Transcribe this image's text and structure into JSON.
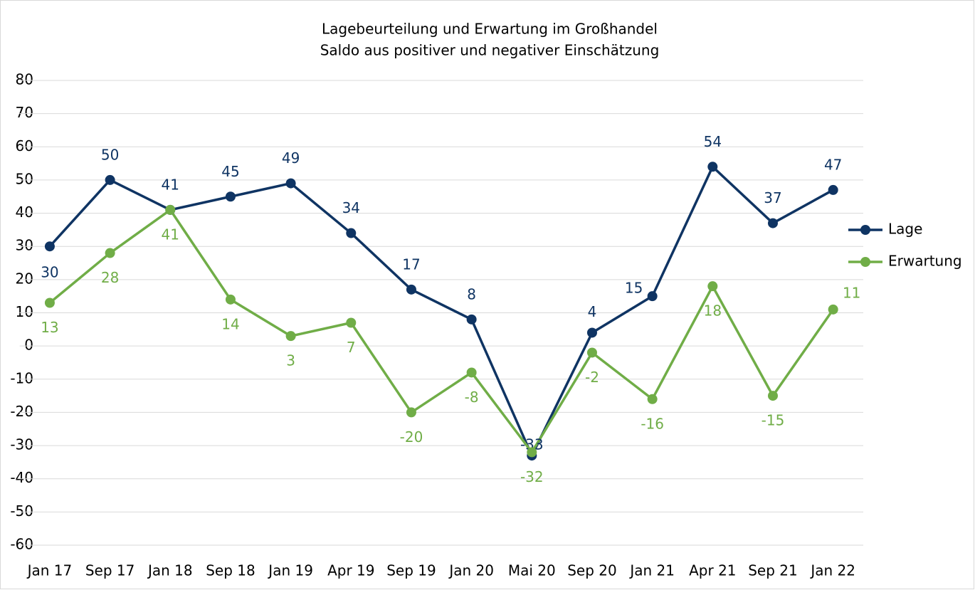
{
  "chart_data": {
    "type": "line",
    "title": "Lagebeurteilung und Erwartung im Großhandel",
    "subtitle": "Saldo aus positiver und negativer Einschätzung",
    "categories": [
      "Jan 17",
      "Sep 17",
      "Jan 18",
      "Sep 18",
      "Jan 19",
      "Apr 19",
      "Sep 19",
      "Jan 20",
      "Mai 20",
      "Sep 20",
      "Jan 21",
      "Apr 21",
      "Sep 21",
      "Jan 22"
    ],
    "series": [
      {
        "name": "Lage",
        "color": "#0f3463",
        "values": [
          30,
          50,
          41,
          45,
          49,
          34,
          17,
          8,
          -33,
          4,
          15,
          54,
          37,
          47
        ]
      },
      {
        "name": "Erwartung",
        "color": "#70ad47",
        "values": [
          13,
          28,
          41,
          14,
          3,
          7,
          -20,
          -8,
          -32,
          -2,
          -16,
          18,
          -15,
          11
        ]
      }
    ],
    "ylim": [
      -60,
      80
    ],
    "yticks": [
      -60,
      -50,
      -40,
      -30,
      -20,
      -10,
      0,
      10,
      20,
      30,
      40,
      50,
      60,
      70,
      80
    ],
    "grid": true,
    "legend": "right"
  }
}
